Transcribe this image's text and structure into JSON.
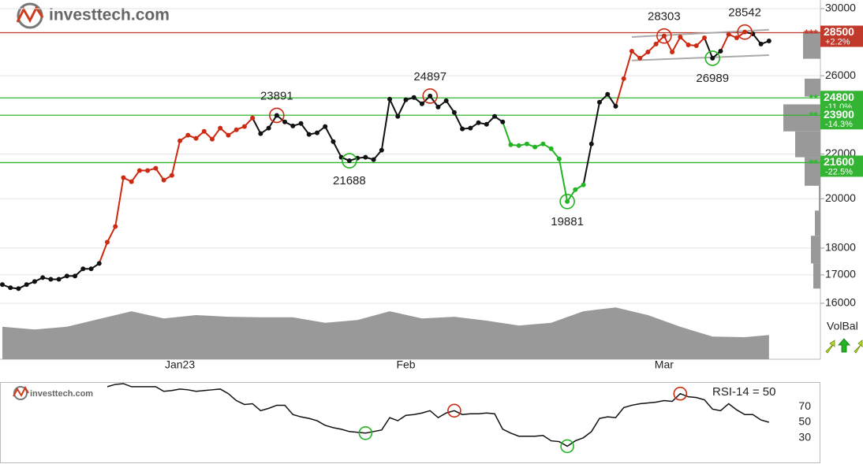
{
  "header": {
    "logo": "investtech.com"
  },
  "chart_data": [
    {
      "type": "line",
      "log_scale": true,
      "grid": true,
      "categories": [
        null,
        null,
        null,
        null,
        null,
        null,
        null,
        null,
        null,
        null,
        null,
        null,
        null,
        null,
        null,
        null,
        null,
        null,
        null,
        null,
        null,
        null,
        "Jan23",
        null,
        null,
        null,
        null,
        null,
        null,
        null,
        null,
        null,
        null,
        null,
        null,
        null,
        null,
        null,
        null,
        null,
        null,
        null,
        null,
        null,
        null,
        null,
        null,
        null,
        null,
        null,
        "Feb",
        null,
        null,
        null,
        null,
        null,
        null,
        null,
        null,
        null,
        null,
        null,
        null,
        null,
        null,
        null,
        null,
        null,
        null,
        null,
        null,
        null,
        null,
        null,
        null,
        null,
        null,
        null,
        null,
        null,
        null,
        null,
        "Mar",
        null,
        null,
        null,
        null,
        null,
        null,
        null,
        null,
        null,
        null,
        null,
        null,
        null
      ],
      "values": [
        16650,
        16540,
        16510,
        16650,
        16760,
        16900,
        16840,
        16840,
        16960,
        16960,
        17220,
        17220,
        17420,
        18230,
        18850,
        20920,
        20740,
        21240,
        21240,
        21340,
        20810,
        21020,
        22630,
        22900,
        22750,
        23090,
        22710,
        23250,
        22900,
        23170,
        23330,
        23760,
        22980,
        23250,
        23891,
        23560,
        23360,
        23480,
        22940,
        23020,
        23330,
        22590,
        21850,
        21688,
        21810,
        21850,
        21740,
        22180,
        24730,
        23840,
        24700,
        24820,
        24490,
        24897,
        24320,
        24650,
        24040,
        23210,
        23250,
        23520,
        23440,
        23840,
        23560,
        22440,
        22400,
        22480,
        22330,
        22480,
        22250,
        21770,
        19881,
        20390,
        20600,
        22480,
        24570,
        24990,
        24360,
        25840,
        27400,
        26990,
        27350,
        27820,
        28303,
        27350,
        28240,
        27770,
        27720,
        28190,
        26989,
        27400,
        28400,
        28190,
        28542,
        28430,
        27820,
        28000
      ],
      "point_colors": [
        "#111111",
        "#111111",
        "#111111",
        "#111111",
        "#111111",
        "#111111",
        "#111111",
        "#111111",
        "#111111",
        "#111111",
        "#111111",
        "#111111",
        "#111111",
        "#cc2a12",
        "#cc2a12",
        "#cc2a12",
        "#cc2a12",
        "#cc2a12",
        "#cc2a12",
        "#cc2a12",
        "#cc2a12",
        "#cc2a12",
        "#cc2a12",
        "#cc2a12",
        "#cc2a12",
        "#cc2a12",
        "#cc2a12",
        "#cc2a12",
        "#cc2a12",
        "#cc2a12",
        "#cc2a12",
        "#cc2a12",
        "#111111",
        "#111111",
        "#111111",
        "#111111",
        "#111111",
        "#111111",
        "#111111",
        "#111111",
        "#111111",
        "#111111",
        "#111111",
        "#111111",
        "#111111",
        "#111111",
        "#111111",
        "#111111",
        "#111111",
        "#111111",
        "#111111",
        "#111111",
        "#111111",
        "#111111",
        "#111111",
        "#111111",
        "#111111",
        "#111111",
        "#111111",
        "#111111",
        "#111111",
        "#111111",
        "#111111",
        "#22b422",
        "#22b422",
        "#22b422",
        "#22b422",
        "#22b422",
        "#22b422",
        "#22b422",
        "#22b422",
        "#22b422",
        "#22b422",
        "#111111",
        "#111111",
        "#111111",
        "#111111",
        "#cc2a12",
        "#cc2a12",
        "#cc2a12",
        "#cc2a12",
        "#cc2a12",
        "#cc2a12",
        "#cc2a12",
        "#cc2a12",
        "#cc2a12",
        "#cc2a12",
        "#cc2a12",
        "#111111",
        "#111111",
        "#cc2a12",
        "#cc2a12",
        "#cc2a12",
        "#111111",
        "#111111",
        "#111111"
      ],
      "ylim": [
        14200,
        30560
      ],
      "yticks": [
        16000,
        17000,
        18000,
        20000,
        22000,
        26000,
        30000
      ],
      "annotations": [
        {
          "index": 34,
          "color": "#cc2a12"
        },
        {
          "index": 43,
          "color": "#22b422"
        },
        {
          "index": 53,
          "color": "#cc2a12"
        },
        {
          "index": 70,
          "color": "#22b422"
        },
        {
          "index": 82,
          "color": "#cc2a12"
        },
        {
          "index": 88,
          "color": "#22b422"
        },
        {
          "index": 92,
          "color": "#cc2a12"
        }
      ],
      "levels": [
        {
          "value": 28500,
          "label": "+2.2%",
          "marker": "***",
          "color": "#c0392b"
        },
        {
          "value": 24800,
          "label": "-11.0%",
          "marker": "**",
          "color": "#33b533"
        },
        {
          "value": 23900,
          "label": "-14.3%",
          "marker": "**",
          "color": "#33b533"
        },
        {
          "value": 21600,
          "label": "-22.5%",
          "marker": "**",
          "color": "#33b533"
        }
      ],
      "channel": {
        "color": "#aaaaaa",
        "lines": [
          {
            "x": [
              78,
              95
            ],
            "values": [
              28240,
              28680
            ]
          },
          {
            "x": [
              78,
              95
            ],
            "values": [
              26860,
              27170
            ]
          }
        ]
      },
      "volume_profile": {
        "color": "#999999",
        "xlim": [
          0,
          50
        ],
        "bins": [
          16510,
          17420,
          18480,
          19500,
          20560,
          21850,
          23090,
          24460,
          24870,
          25840,
          26960,
          28560
        ],
        "values": [
          9,
          12,
          7,
          2,
          20,
          32,
          47,
          0,
          20,
          0,
          22
        ]
      },
      "volume_balance": {
        "label": "VolBal",
        "color": "#999999",
        "ylim": [
          0,
          100
        ],
        "x": [
          0,
          4,
          8,
          12,
          16,
          20,
          24,
          28,
          32,
          36,
          40,
          44,
          48,
          52,
          56,
          60,
          64,
          68,
          72,
          76,
          80,
          84,
          88,
          92,
          95
        ],
        "values": [
          59,
          54,
          59,
          73,
          87,
          74,
          80,
          77,
          76,
          76,
          66,
          71,
          87,
          74,
          77,
          70,
          61,
          66,
          87,
          94,
          80,
          59,
          41,
          40,
          44
        ]
      }
    },
    {
      "type": "line",
      "logo": "investtech.com",
      "label": "RSI-14 = 50",
      "color": "#111111",
      "ylim": [
        -5,
        102
      ],
      "yticks": [
        30,
        50,
        70
      ],
      "values": [
        null,
        null,
        null,
        null,
        null,
        null,
        null,
        null,
        null,
        null,
        null,
        null,
        null,
        96,
        99,
        100,
        96,
        96,
        96,
        96,
        90,
        91,
        93,
        92,
        90,
        91,
        92,
        93,
        87,
        78,
        73,
        74,
        65,
        68,
        72,
        72,
        60,
        57,
        55,
        52,
        46,
        43,
        41,
        38,
        37,
        36,
        38,
        40,
        56,
        52,
        59,
        60,
        62,
        65,
        56,
        62,
        65,
        60,
        61,
        61,
        62,
        61,
        41,
        36,
        32,
        32,
        32,
        33,
        26,
        25,
        19,
        26,
        30,
        38,
        55,
        57,
        56,
        69,
        72,
        74,
        75,
        76,
        78,
        77,
        87,
        83,
        82,
        79,
        67,
        65,
        74,
        66,
        60,
        60,
        53,
        50
      ],
      "markers": [
        {
          "index": 45,
          "color": "#22b422"
        },
        {
          "index": 56,
          "color": "#cc2a12"
        },
        {
          "index": 70,
          "color": "#22b422"
        },
        {
          "index": 84,
          "color": "#cc2a12"
        }
      ]
    }
  ]
}
